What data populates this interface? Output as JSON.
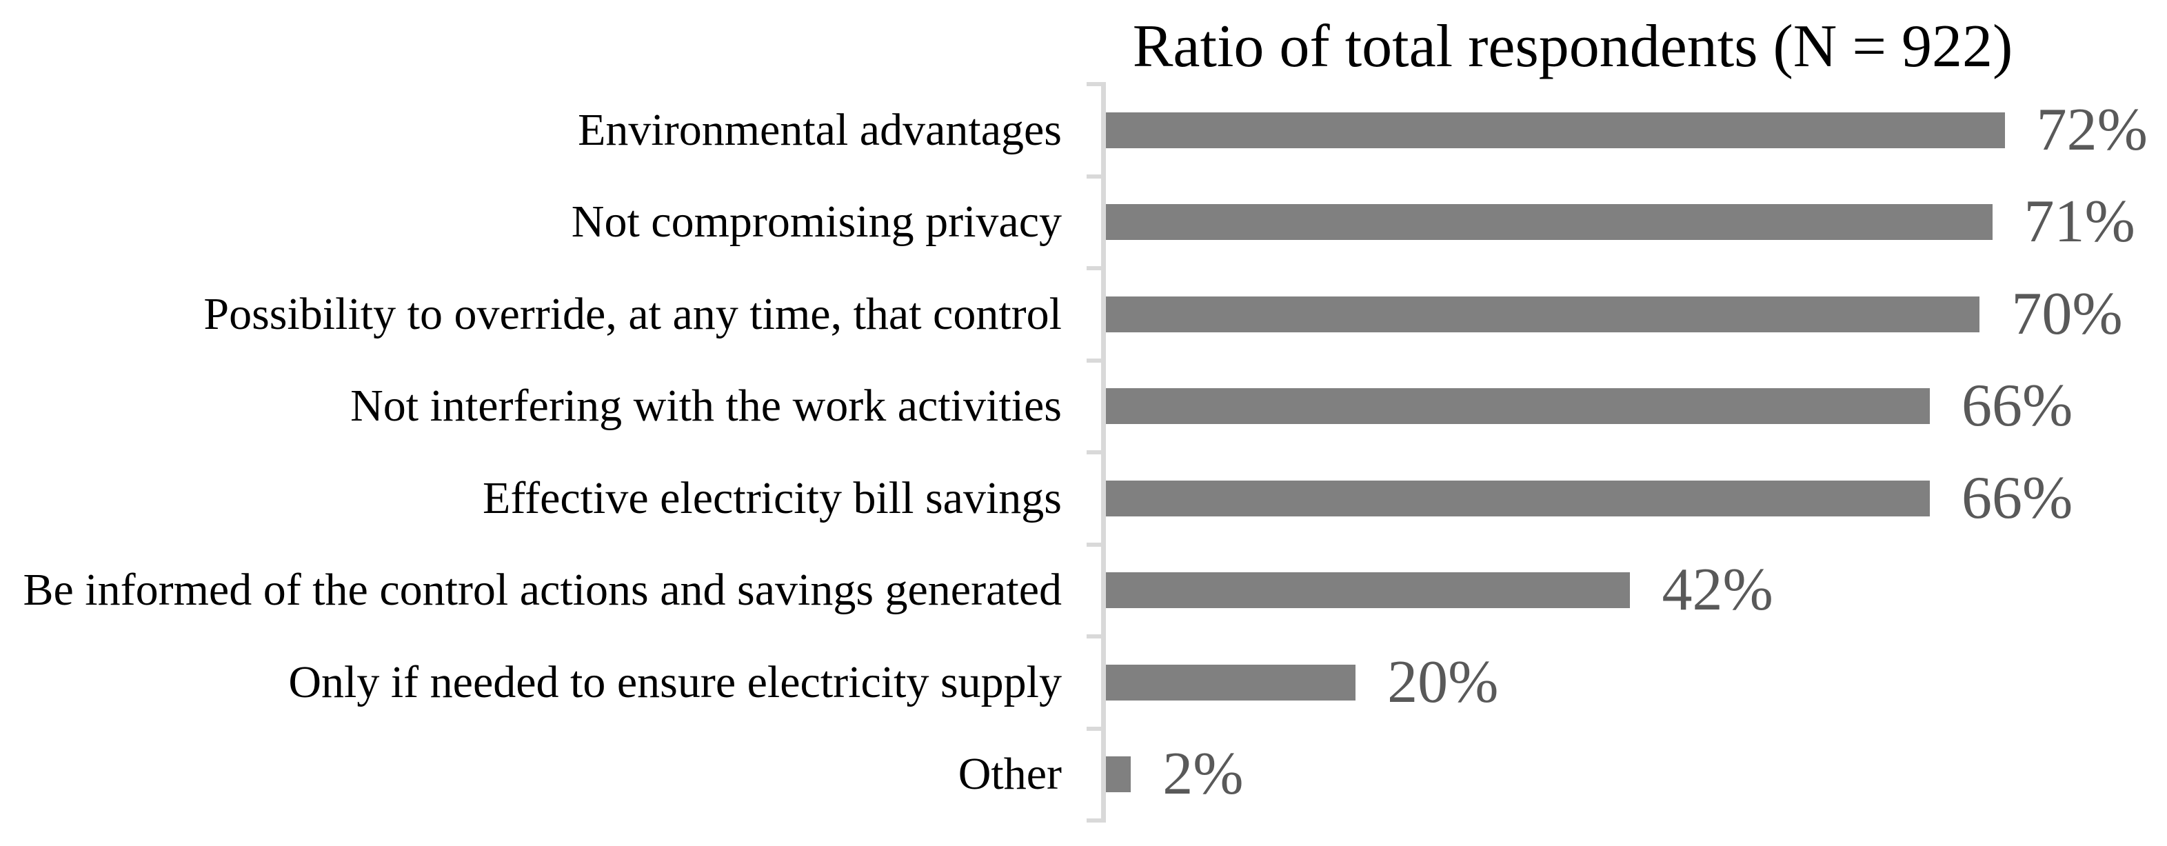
{
  "chart_data": {
    "type": "bar",
    "orientation": "horizontal",
    "title": "Ratio of total respondents (N = 922)",
    "categories": [
      "Environmental advantages",
      "Not compromising privacy",
      "Possibility to override, at any time, that control",
      "Not interfering with the work activities",
      "Effective electricity bill savings",
      "Be informed of the control actions and savings generated",
      "Only if needed to ensure electricity supply",
      "Other"
    ],
    "values": [
      72,
      71,
      70,
      66,
      66,
      42,
      20,
      2
    ],
    "value_labels": [
      "72%",
      "71%",
      "70%",
      "66%",
      "66%",
      "42%",
      "20%",
      "2%"
    ],
    "xlabel": "",
    "ylabel": "",
    "xlim": [
      0,
      85
    ],
    "grid": false,
    "legend": null,
    "colors": {
      "bar": "#808080",
      "value_label": "#595959",
      "category_label": "#000000",
      "title": "#000000",
      "axis": "#d9d9d9",
      "background": "#ffffff"
    }
  }
}
